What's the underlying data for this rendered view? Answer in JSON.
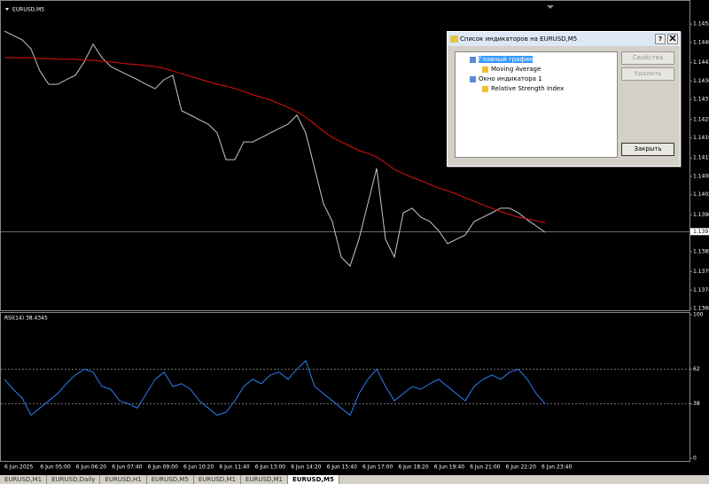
{
  "window": {
    "symbol_label": "EURUSD,M5"
  },
  "chart_data": [
    {
      "type": "line",
      "color_background": "#000000",
      "ylim": [
        1.1368,
        1.14607
      ],
      "yticks": [
        1.14535,
        {
          "value": 1.1448,
          "label": "1.14480"
        },
        {
          "value": 1.1442,
          "label": "1.14420"
        },
        1.14365,
        {
          "value": 1.1431,
          "label": "1.14310"
        },
        {
          "value": 1.1425,
          "label": "1.14250"
        },
        1.14195,
        1.14135,
        {
          "value": 1.1408,
          "label": "1.14080"
        },
        1.14025,
        1.13965,
        1.13855,
        1.13795,
        {
          "value": 1.1374,
          "label": "1.13740"
        },
        1.13685
      ],
      "current_price": 1.13915,
      "x_labels": [
        "6 Jun 2025",
        "6 Jun 05:00",
        "6 Jun 06:20",
        "6 Jun 07:40",
        "6 Jun 09:00",
        "6 Jun 10:20",
        "6 Jun 11:40",
        "6 Jun 13:00",
        "6 Jun 14:20",
        "6 Jun 15:40",
        "6 Jun 17:00",
        "6 Jun 18:20",
        "6 Jun 19:40",
        "6 Jun 21:00",
        "6 Jun 22:20",
        "6 Jun 23:40"
      ],
      "series": [
        {
          "color": "#c8c8c8",
          "values": [
            1.14514,
            1.14501,
            1.14488,
            1.14461,
            1.14395,
            1.14355,
            1.14355,
            1.14369,
            1.14382,
            1.14422,
            1.14475,
            1.14435,
            1.14408,
            1.14395,
            1.14382,
            1.14369,
            1.14355,
            1.14342,
            1.14369,
            1.14382,
            1.14276,
            1.14263,
            1.14249,
            1.14236,
            1.1421,
            1.1413,
            1.1413,
            1.14183,
            1.14183,
            1.14196,
            1.1421,
            1.14223,
            1.14236,
            1.14263,
            1.1421,
            1.14104,
            1.13998,
            1.13945,
            1.13839,
            1.13812,
            1.13892,
            1.13998,
            1.14104,
            1.13892,
            1.13839,
            1.13971,
            1.13985,
            1.13958,
            1.13945,
            1.13918,
            1.13879,
            1.13892,
            1.13905,
            1.13945,
            1.13958,
            1.13971,
            1.13985,
            1.13985,
            1.13971,
            1.1395,
            1.13932,
            1.13913
          ]
        },
        {
          "color": "#e01010",
          "values": [
            1.14435,
            1.14435,
            1.14435,
            1.14435,
            1.14432,
            1.14432,
            1.1443,
            1.1443,
            1.1443,
            1.14427,
            1.14427,
            1.14424,
            1.14422,
            1.14419,
            1.14416,
            1.14414,
            1.14411,
            1.14408,
            1.14403,
            1.14395,
            1.14387,
            1.14379,
            1.14371,
            1.14363,
            1.14355,
            1.1435,
            1.14342,
            1.14334,
            1.14324,
            1.14316,
            1.14308,
            1.14297,
            1.14286,
            1.14273,
            1.14257,
            1.14236,
            1.14215,
            1.14196,
            1.14183,
            1.1417,
            1.14157,
            1.14149,
            1.14138,
            1.1412,
            1.14101,
            1.14088,
            1.14077,
            1.14067,
            1.14056,
            1.14045,
            1.14037,
            1.14027,
            1.14016,
            1.14006,
            1.13995,
            1.13985,
            1.13974,
            1.13966,
            1.13958,
            1.13953,
            1.13947,
            1.13942
          ]
        }
      ]
    },
    {
      "type": "line",
      "title": "RSI(14) 38.4345",
      "ylim": [
        0,
        100
      ],
      "yticks": [
        0,
        38,
        62,
        100
      ],
      "levels": [
        38,
        62
      ],
      "series": [
        {
          "color": "#2a7ff0",
          "values": [
            55,
            48,
            42,
            30,
            35,
            40,
            45,
            52,
            58,
            62,
            60,
            50,
            48,
            40,
            38,
            35,
            45,
            55,
            60,
            50,
            52,
            48,
            40,
            35,
            30,
            32,
            40,
            50,
            55,
            52,
            58,
            60,
            55,
            62,
            68,
            50,
            45,
            40,
            35,
            30,
            45,
            55,
            62,
            50,
            40,
            45,
            50,
            48,
            52,
            55,
            50,
            45,
            40,
            50,
            55,
            58,
            55,
            60,
            62,
            55,
            45,
            38
          ]
        }
      ]
    }
  ],
  "dialog": {
    "title": "Список индикаторов на EURUSD,M5",
    "help": "?",
    "tree": [
      "Главный график",
      "Moving Average",
      "Окно индикатора 1",
      "Relative Strength Index"
    ],
    "buttons": [
      "Свойства",
      "Удалить",
      "Закрыть"
    ]
  },
  "tabs": [
    "EURUSD,M1",
    "EURUSD,Daily",
    "EURUSD,H1",
    "EURUSD,M5",
    "EURUSD,M1",
    "EURUSD,M1",
    "EURUSD,M5"
  ]
}
